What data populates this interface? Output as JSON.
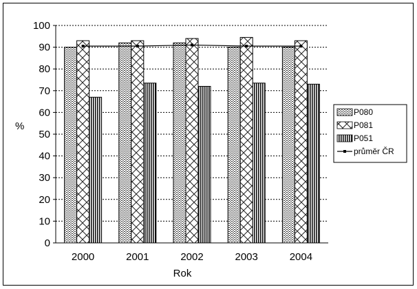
{
  "chart_data": {
    "type": "bar",
    "categories": [
      "2000",
      "2001",
      "2002",
      "2003",
      "2004"
    ],
    "series": [
      {
        "name": "P080",
        "values": [
          90,
          92,
          92,
          90,
          90
        ]
      },
      {
        "name": "P081",
        "values": [
          93,
          93,
          94,
          94.5,
          93
        ]
      },
      {
        "name": "P051",
        "values": [
          67,
          73.5,
          72,
          73.5,
          73
        ]
      }
    ],
    "line_series": {
      "name": "průměr ČR",
      "values": [
        90.5,
        90.5,
        91,
        90.5,
        90.5
      ]
    },
    "xlabel": "Rok",
    "ylabel": "%",
    "ylim": [
      0,
      100
    ],
    "yticks": [
      "0",
      "10",
      "20",
      "30",
      "40",
      "50",
      "60",
      "70",
      "80",
      "90",
      "100"
    ],
    "grid": "horizontal dotted",
    "legend_position": "right"
  }
}
